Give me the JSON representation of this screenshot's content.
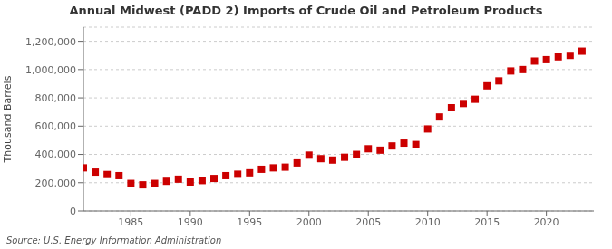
{
  "chart_data": {
    "type": "scatter",
    "title": "Annual Midwest (PADD 2) Imports of Crude Oil and Petroleum Products",
    "ylabel": "Thousand Barrels",
    "annotations": [
      "Source: U.S. Energy Information Administration"
    ],
    "x": [
      1981,
      1982,
      1983,
      1984,
      1985,
      1986,
      1987,
      1988,
      1989,
      1990,
      1991,
      1992,
      1993,
      1994,
      1995,
      1996,
      1997,
      1998,
      1999,
      2000,
      2001,
      2002,
      2003,
      2004,
      2005,
      2006,
      2007,
      2008,
      2009,
      2010,
      2011,
      2012,
      2013,
      2014,
      2015,
      2016,
      2017,
      2018,
      2019,
      2020,
      2021,
      2022,
      2023
    ],
    "values": [
      305000,
      275000,
      258000,
      250000,
      195000,
      185000,
      195000,
      210000,
      225000,
      205000,
      215000,
      230000,
      250000,
      260000,
      270000,
      295000,
      305000,
      310000,
      340000,
      395000,
      370000,
      360000,
      380000,
      400000,
      440000,
      430000,
      460000,
      480000,
      470000,
      580000,
      665000,
      730000,
      760000,
      790000,
      885000,
      920000,
      990000,
      1000000,
      1060000,
      1070000,
      1090000,
      1100000,
      1130000
    ],
    "color": "#cc0000",
    "marker": "square",
    "xlim": [
      1981,
      2024
    ],
    "xticks": [
      1985,
      1990,
      1995,
      2000,
      2005,
      2010,
      2015,
      2020
    ],
    "ylim": [
      0,
      1300000
    ],
    "yticks": [
      0,
      {
        "value": 200000,
        "label": "200,000"
      },
      {
        "value": 400000,
        "label": "400,000"
      },
      {
        "value": 600000,
        "label": "600,000"
      },
      {
        "value": 800000,
        "label": "800,000"
      },
      {
        "value": 1000000,
        "label": "1,000,000"
      },
      {
        "value": 1200000,
        "label": "1,200,000"
      }
    ],
    "grid": true
  }
}
